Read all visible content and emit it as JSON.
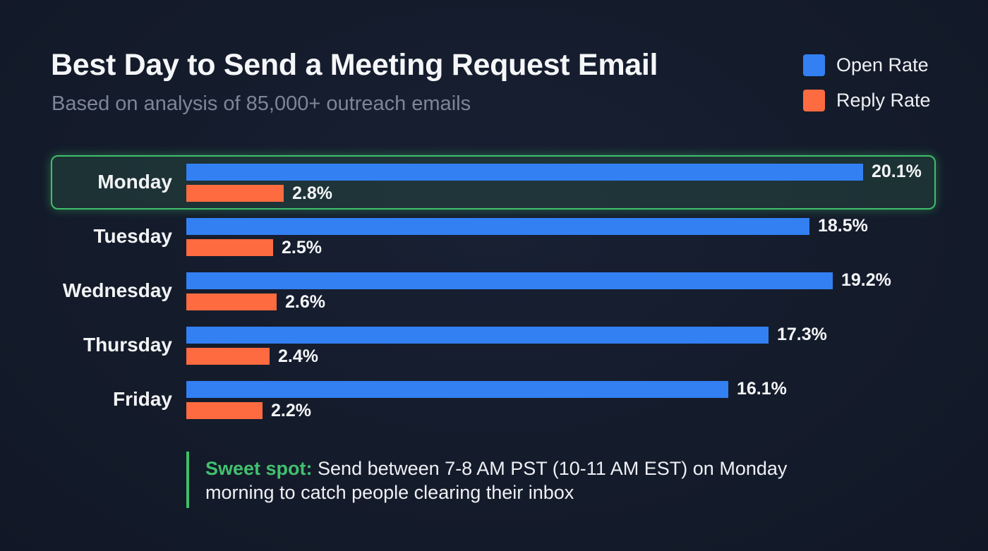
{
  "header": {
    "title": "Best Day to Send a Meeting Request Email",
    "subtitle": "Based on analysis of 85,000+ outreach emails"
  },
  "legend": [
    {
      "label": "Open Rate",
      "color": "#3380f2"
    },
    {
      "label": "Reply Rate",
      "color": "#ff6b40"
    }
  ],
  "rows": [
    {
      "day": "Monday",
      "open": 20.1,
      "reply": 2.8,
      "open_label": "20.1%",
      "reply_label": "2.8%",
      "highlight": true
    },
    {
      "day": "Tuesday",
      "open": 18.5,
      "reply": 2.5,
      "open_label": "18.5%",
      "reply_label": "2.5%",
      "highlight": false
    },
    {
      "day": "Wednesday",
      "open": 19.2,
      "reply": 2.6,
      "open_label": "19.2%",
      "reply_label": "2.6%",
      "highlight": false
    },
    {
      "day": "Thursday",
      "open": 17.3,
      "reply": 2.4,
      "open_label": "17.3%",
      "reply_label": "2.4%",
      "highlight": false
    },
    {
      "day": "Friday",
      "open": 16.1,
      "reply": 2.2,
      "open_label": "16.1%",
      "reply_label": "2.2%",
      "highlight": false
    }
  ],
  "note": {
    "strong": "Sweet spot:",
    "line1_rest": " Send between 7-8 AM PST (10-11 AM EST) on Monday",
    "line2": "morning to catch people clearing their inbox"
  },
  "colors": {
    "background": "#141b2b",
    "open": "#3380f2",
    "reply": "#ff6b40",
    "highlight": "#3fbf6a"
  },
  "chart_data": {
    "type": "bar",
    "orientation": "horizontal",
    "title": "Best Day to Send a Meeting Request Email",
    "subtitle": "Based on analysis of 85,000+ outreach emails",
    "categories": [
      "Monday",
      "Tuesday",
      "Wednesday",
      "Thursday",
      "Friday"
    ],
    "series": [
      {
        "name": "Open Rate",
        "values": [
          20.1,
          18.5,
          19.2,
          17.3,
          16.1
        ],
        "unit": "%",
        "color": "#3380f2"
      },
      {
        "name": "Reply Rate",
        "values": [
          2.8,
          2.5,
          2.6,
          2.4,
          2.2
        ],
        "unit": "%",
        "color": "#ff6b40"
      }
    ],
    "xlabel": "",
    "ylabel": "",
    "grid": false,
    "legend_position": "top-right",
    "data_labels": true,
    "highlighted_category": "Monday",
    "annotation": "Sweet spot: Send between 7-8 AM PST (10-11 AM EST) on Monday morning to catch people clearing their inbox"
  }
}
